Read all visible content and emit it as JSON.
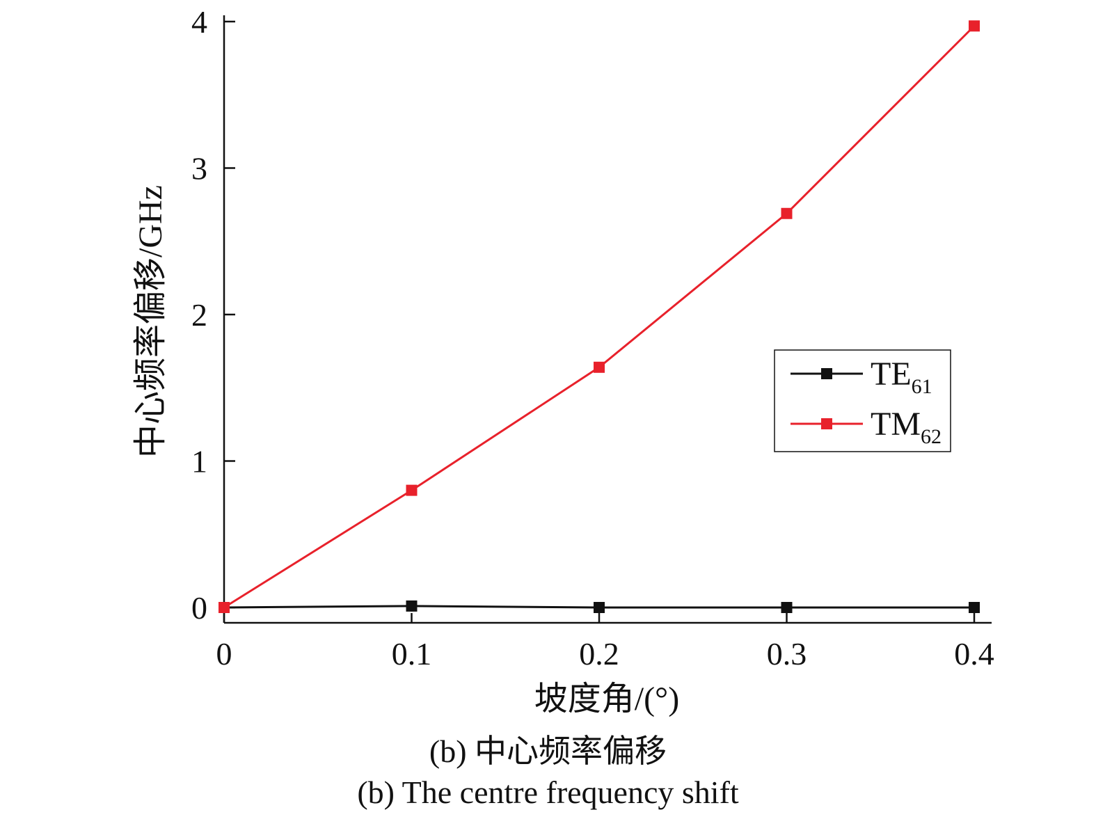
{
  "chart_data": {
    "type": "line",
    "title": "",
    "xlabel": "坡度角/(°)",
    "ylabel": "中心频率偏移/GHz",
    "x": [
      0,
      0.1,
      0.2,
      0.3,
      0.4
    ],
    "x_ticks": [
      "0",
      "0.1",
      "0.2",
      "0.3",
      "0.4"
    ],
    "y_ticks": [
      "0",
      "1",
      "2",
      "3",
      "4"
    ],
    "xlim": [
      0,
      0.4
    ],
    "ylim": [
      0,
      4
    ],
    "grid": false,
    "legend_position": "right",
    "series": [
      {
        "name": "TE",
        "subscript": "61",
        "color": "#111111",
        "marker": "square",
        "values": [
          0,
          0.01,
          0.0,
          0.0,
          0.0
        ]
      },
      {
        "name": "TM",
        "subscript": "62",
        "color": "#e8212b",
        "marker": "square",
        "values": [
          0,
          0.8,
          1.64,
          2.69,
          3.97
        ]
      }
    ]
  },
  "captions": {
    "zh": "(b) 中心频率偏移",
    "en": "(b) The centre frequency shift"
  }
}
